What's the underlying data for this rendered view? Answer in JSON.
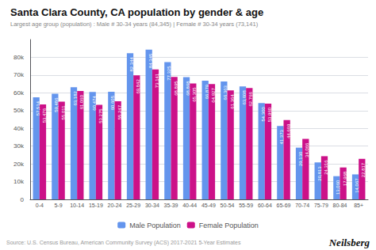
{
  "chart_data": {
    "type": "bar",
    "title": "Santa Clara County, CA population by gender & age",
    "subtitle": "Largest age group (population) : Male # 30-34 years (84,345) | Female # 30-34 years (73,141)",
    "annotations": [
      "Source: U.S. Census Bureau, American Community Survey (ACS) 2017-2021 5-Year Estimates",
      "Neilsberg"
    ],
    "categories": [
      "0-4",
      "5-9",
      "10-14",
      "15-19",
      "20-24",
      "25-29",
      "30-34",
      "35-39",
      "40-44",
      "45-49",
      "50-54",
      "55-59",
      "60-64",
      "65-69",
      "70-74",
      "75-79",
      "80-84",
      "85+"
    ],
    "series": [
      {
        "name": "Male Population",
        "color": "#6495ED",
        "values": [
          57514,
          59486,
          63182,
          60474,
          60605,
          82344,
          84345,
          77325,
          68868,
          66879,
          66363,
          63608,
          54300,
          41373,
          29130,
          20813,
          13060,
          14067
        ],
        "value_labels": [
          "57,514",
          "59,486",
          "63,182",
          "60,474",
          "60,605",
          "82,344",
          "84,345",
          "77,325",
          "68,868",
          "66,879",
          "66,363",
          "63,608",
          "54,300",
          "41,373",
          "29,130",
          "20,813",
          "13,060",
          "14,067"
        ]
      },
      {
        "name": "Female Population",
        "color": "#CC1188",
        "values": [
          53476,
          55011,
          61060,
          53275,
          55247,
          69842,
          73141,
          68895,
          65305,
          64927,
          61364,
          62766,
          53960,
          44669,
          34066,
          24316,
          17968,
          22817
        ],
        "value_labels": [
          "53,476",
          "55,011",
          "61,060",
          "53,275",
          "55,247",
          "69,842",
          "73,141",
          "68,895",
          "65,305",
          "64,927",
          "61,364",
          "62,766",
          "53,960",
          "44,669",
          "34,066",
          "24,316",
          "17,968",
          "22,817"
        ]
      }
    ],
    "ylim": [
      0,
      90000
    ],
    "yticks": [
      0,
      {
        "value": 10000,
        "label": "10k"
      },
      {
        "value": 20000,
        "label": "20k"
      },
      {
        "value": 30000,
        "label": "30k"
      },
      {
        "value": 40000,
        "label": "40k"
      },
      {
        "value": 50000,
        "label": "50k"
      },
      {
        "value": 60000,
        "label": "60k"
      },
      {
        "value": 70000,
        "label": "70k"
      },
      {
        "value": 80000,
        "label": "80k"
      }
    ],
    "grid": true,
    "legend": "bottom",
    "data_labels": true
  }
}
